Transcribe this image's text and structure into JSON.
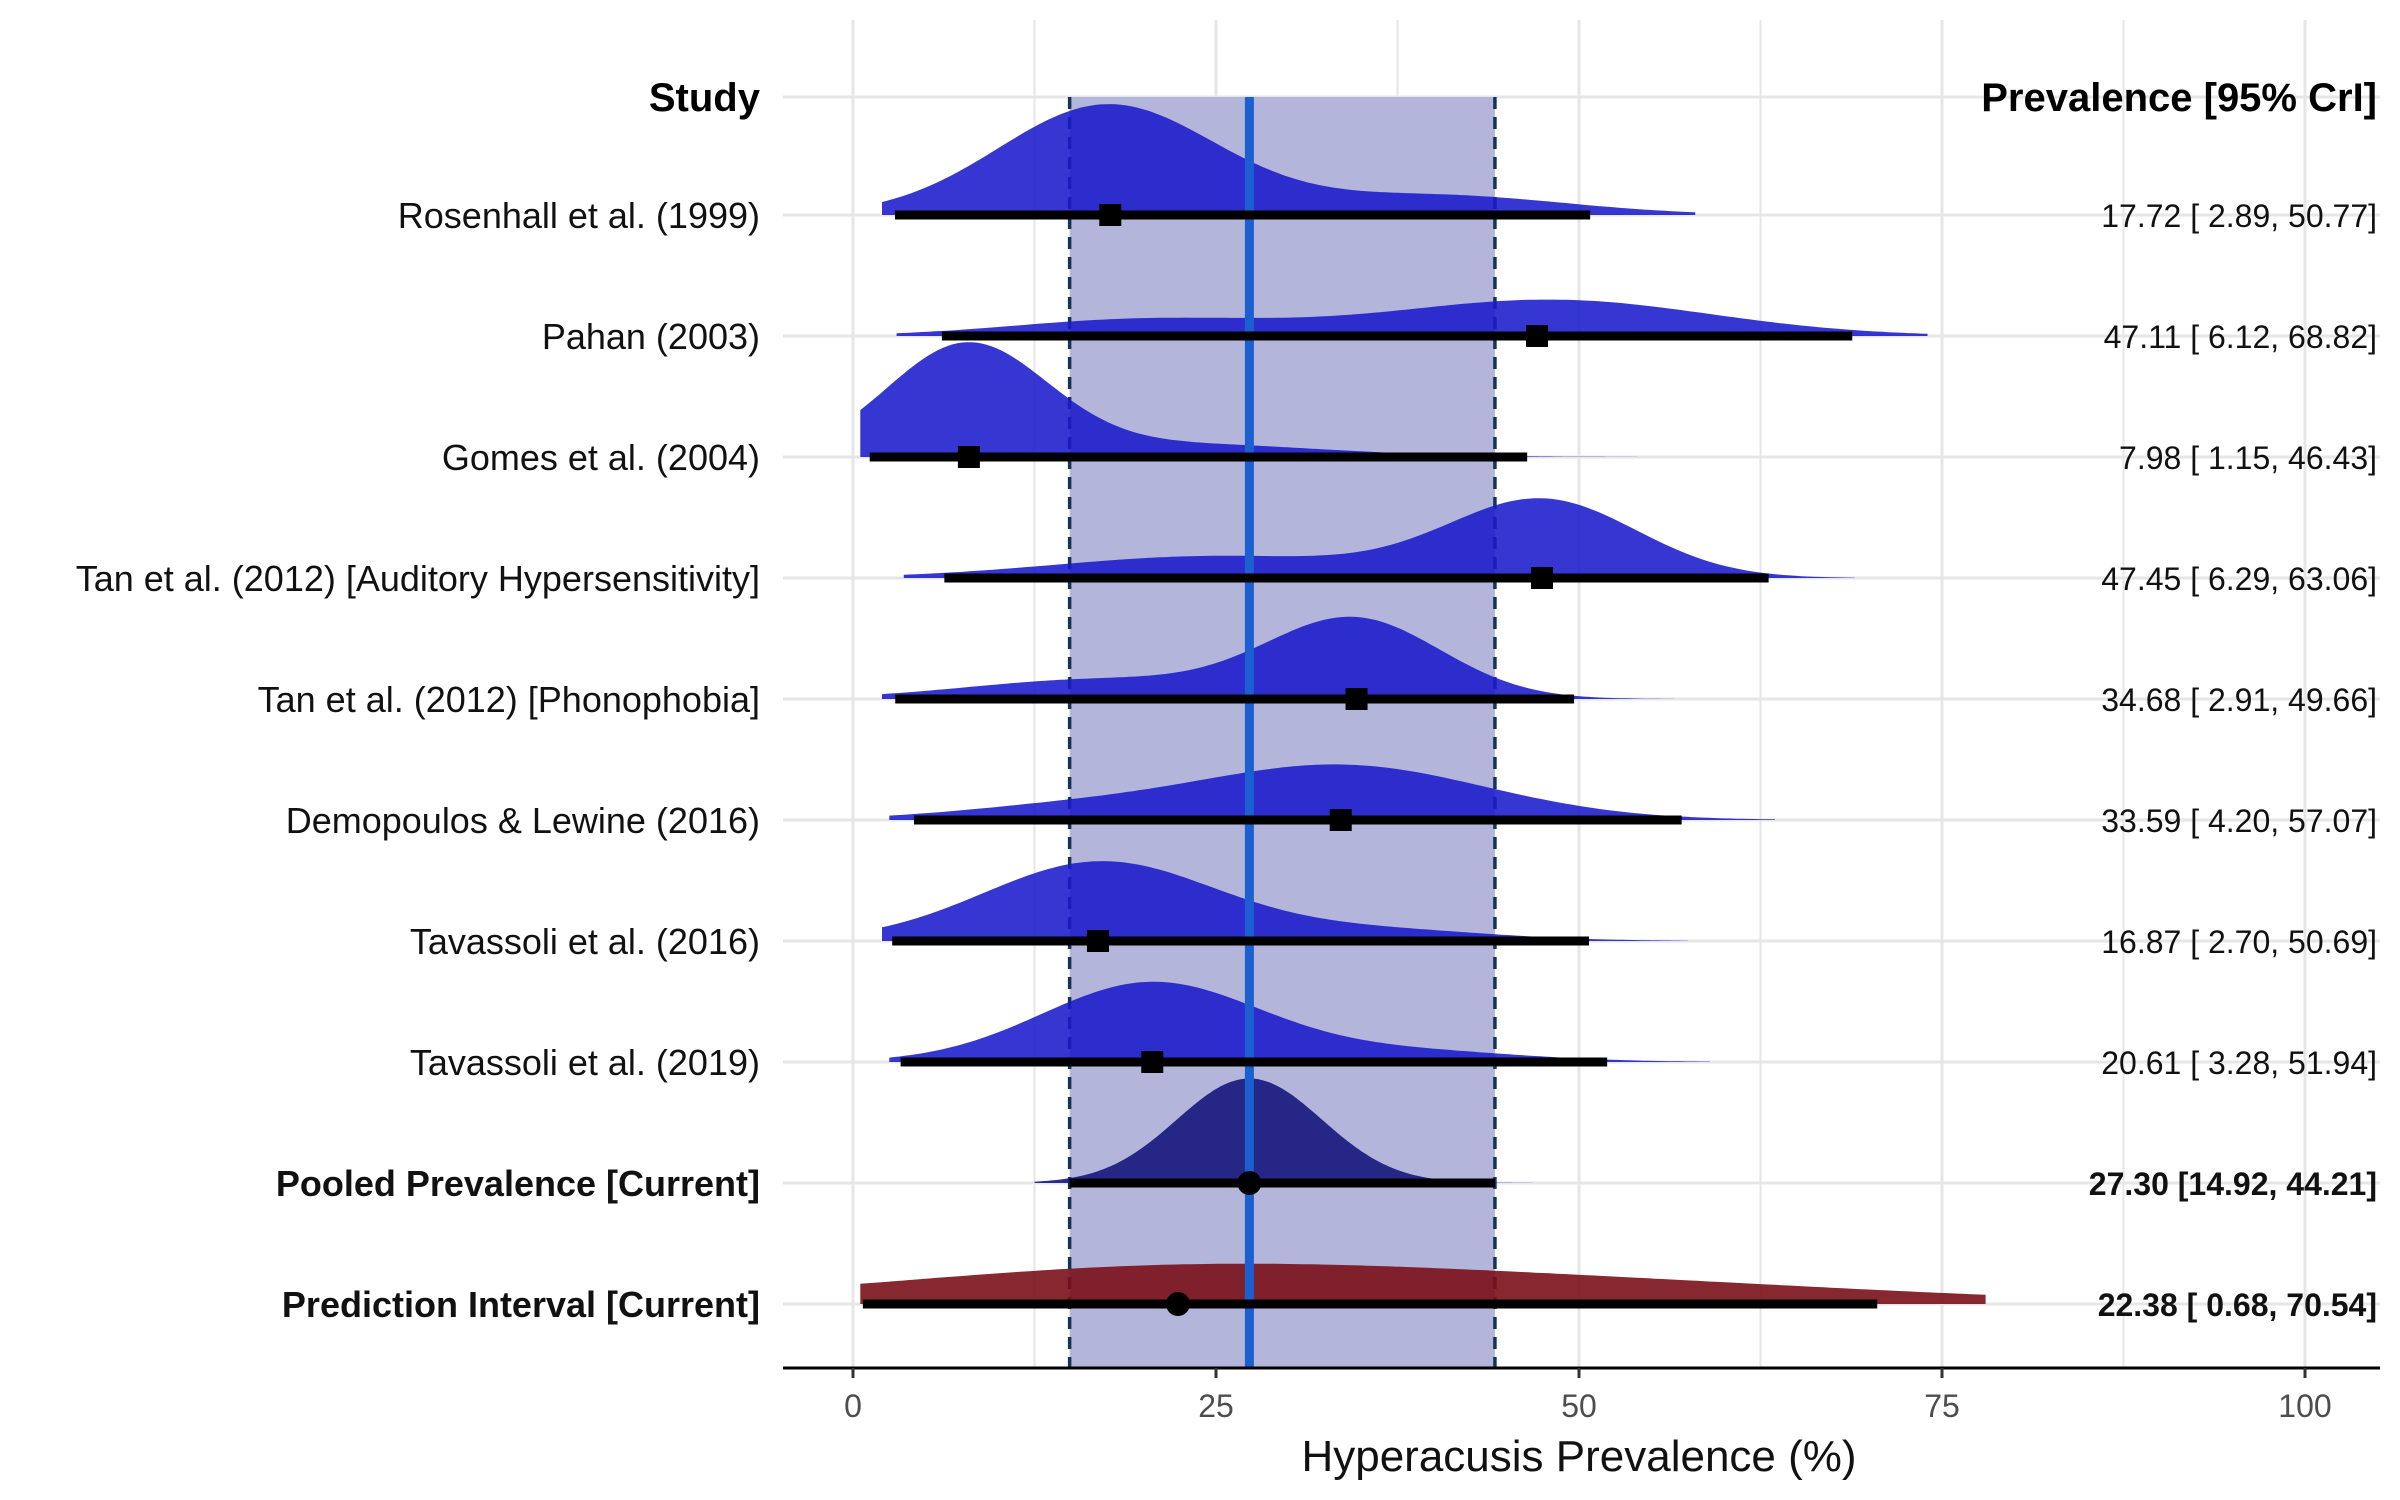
{
  "chart_data": {
    "type": "forest-ridgeline",
    "xlabel": "Hyperacusis Prevalence (%)",
    "xlim": [
      0,
      100
    ],
    "xticks": [
      0,
      25,
      50,
      75,
      100
    ],
    "grid": true,
    "headers": {
      "study": "Study",
      "prevalence": "Prevalence [95% CrI]"
    },
    "pooled_band": {
      "estimate": 27.3,
      "lower": 14.92,
      "upper": 44.21
    },
    "colors": {
      "study_density": "#1a1acc",
      "pooled_density": "#1a1a80",
      "prediction_density": "#7a1019",
      "band": "#b3b5da",
      "pooled_line": "#1c5fd0",
      "band_edges": "#163357",
      "interval": "#000000",
      "grid": "#e6e6e6"
    },
    "rows": [
      {
        "study": "Rosenhall et al. (1999)",
        "estimate": 17.72,
        "lower": 2.89,
        "upper": 50.77,
        "label": "17.72 [ 2.89, 50.77]",
        "kind": "study",
        "marker": "square",
        "density": {
          "peaks": [
            [
              17.5,
              7.5,
              1.0
            ],
            [
              40,
              9,
              0.18
            ]
          ],
          "range": [
            2,
            58
          ]
        }
      },
      {
        "study": "Pahan (2003)",
        "estimate": 47.11,
        "lower": 6.12,
        "upper": 68.82,
        "label": "47.11 [ 6.12, 68.82]",
        "kind": "study",
        "marker": "square",
        "density": {
          "peaks": [
            [
              48,
              11,
              0.33
            ],
            [
              20,
              9,
              0.15
            ]
          ],
          "range": [
            3,
            74
          ]
        }
      },
      {
        "study": "Gomes et al. (2004)",
        "estimate": 7.98,
        "lower": 1.15,
        "upper": 46.43,
        "label": "7.98 [ 1.15, 46.43]",
        "kind": "study",
        "marker": "square",
        "density": {
          "peaks": [
            [
              7.8,
              5.5,
              1.0
            ],
            [
              22,
              10,
              0.12
            ]
          ],
          "range": [
            0.5,
            54
          ]
        }
      },
      {
        "study": "Tan et al. (2012) [Auditory Hypersensitivity]",
        "estimate": 47.45,
        "lower": 6.29,
        "upper": 63.06,
        "label": "47.45 [ 6.29, 63.06]",
        "kind": "study",
        "marker": "square",
        "density": {
          "peaks": [
            [
              47.5,
              6.5,
              0.7
            ],
            [
              25,
              11,
              0.2
            ]
          ],
          "range": [
            3.5,
            69
          ]
        }
      },
      {
        "study": "Tan et al. (2012) [Phonophobia]",
        "estimate": 34.68,
        "lower": 2.91,
        "upper": 49.66,
        "label": "34.68 [ 2.91, 49.66]",
        "kind": "study",
        "marker": "square",
        "density": {
          "peaks": [
            [
              34.5,
              6.0,
              0.72
            ],
            [
              17,
              9,
              0.18
            ]
          ],
          "range": [
            2,
            56.5
          ]
        }
      },
      {
        "study": "Demopoulos & Lewine (2016)",
        "estimate": 33.59,
        "lower": 4.2,
        "upper": 57.07,
        "label": "33.59 [ 4.20, 57.07]",
        "kind": "study",
        "marker": "square",
        "density": {
          "peaks": [
            [
              33.5,
              10,
              0.5
            ],
            [
              14,
              8,
              0.1
            ]
          ],
          "range": [
            2.5,
            63.5
          ]
        }
      },
      {
        "study": "Tavassoli et al. (2016)",
        "estimate": 16.87,
        "lower": 2.7,
        "upper": 50.69,
        "label": "16.87 [ 2.70, 50.69]",
        "kind": "study",
        "marker": "square",
        "density": {
          "peaks": [
            [
              17,
              8,
              0.72
            ],
            [
              36,
              8,
              0.1
            ]
          ],
          "range": [
            2,
            57.5
          ]
        }
      },
      {
        "study": "Tavassoli et al. (2019)",
        "estimate": 20.61,
        "lower": 3.28,
        "upper": 51.94,
        "label": "20.61 [ 3.28, 51.94]",
        "kind": "study",
        "marker": "square",
        "density": {
          "peaks": [
            [
              20.5,
              7.5,
              0.72
            ],
            [
              38,
              8,
              0.1
            ]
          ],
          "range": [
            2.5,
            59
          ]
        }
      },
      {
        "study": "Pooled Prevalence [Current]",
        "estimate": 27.3,
        "lower": 14.92,
        "upper": 44.21,
        "label": "27.30 [14.92, 44.21]",
        "kind": "pooled",
        "marker": "circle",
        "density": {
          "peaks": [
            [
              27.3,
              5.0,
              0.95
            ]
          ],
          "range": [
            12.5,
            50.5
          ]
        }
      },
      {
        "study": "Prediction Interval [Current]",
        "estimate": 22.38,
        "lower": 0.68,
        "upper": 70.54,
        "label": "22.38 [ 0.68, 70.54]",
        "kind": "prediction",
        "marker": "circle",
        "density": {
          "peaks": [
            [
              22,
              20,
              0.32
            ],
            [
              55,
              20,
              0.15
            ]
          ],
          "range": [
            0.5,
            78
          ]
        }
      }
    ]
  }
}
